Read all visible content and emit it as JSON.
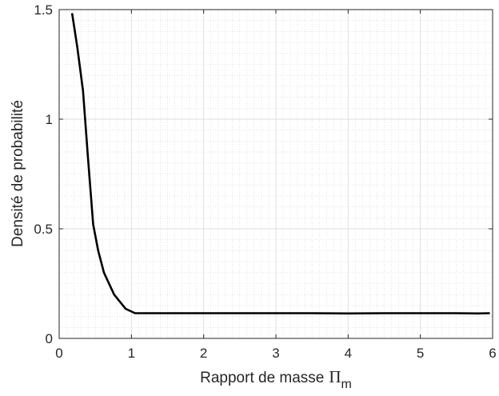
{
  "chart_data": {
    "type": "line",
    "title": "",
    "xlabel": "Rapport de masse",
    "xlabel_symbol": "Π",
    "xlabel_subscript": "m",
    "ylabel": "Densité de probabilité",
    "xlim": [
      0,
      6
    ],
    "ylim": [
      0,
      1.5
    ],
    "xticks": [
      0,
      1,
      2,
      3,
      4,
      5,
      6
    ],
    "xtick_labels": [
      "0",
      "1",
      "2",
      "3",
      "4",
      "5",
      "6"
    ],
    "yticks": [
      0,
      0.5,
      1,
      1.5
    ],
    "ytick_labels": [
      "0",
      "0.5",
      "1",
      "1.5"
    ],
    "grid": true,
    "minor_grid": true,
    "line_color": "#000000",
    "series": [
      {
        "x": [
          0.18,
          0.25,
          0.33,
          0.4,
          0.47,
          0.54,
          0.62,
          0.76,
          0.92,
          1.05,
          1.2,
          1.5,
          2.0,
          2.5,
          3.0,
          3.5,
          4.0,
          4.5,
          5.0,
          5.5,
          5.8,
          5.95
        ],
        "y": [
          1.48,
          1.33,
          1.13,
          0.82,
          0.52,
          0.4,
          0.3,
          0.2,
          0.135,
          0.115,
          0.115,
          0.115,
          0.115,
          0.115,
          0.115,
          0.115,
          0.114,
          0.115,
          0.115,
          0.115,
          0.114,
          0.115
        ]
      }
    ]
  }
}
